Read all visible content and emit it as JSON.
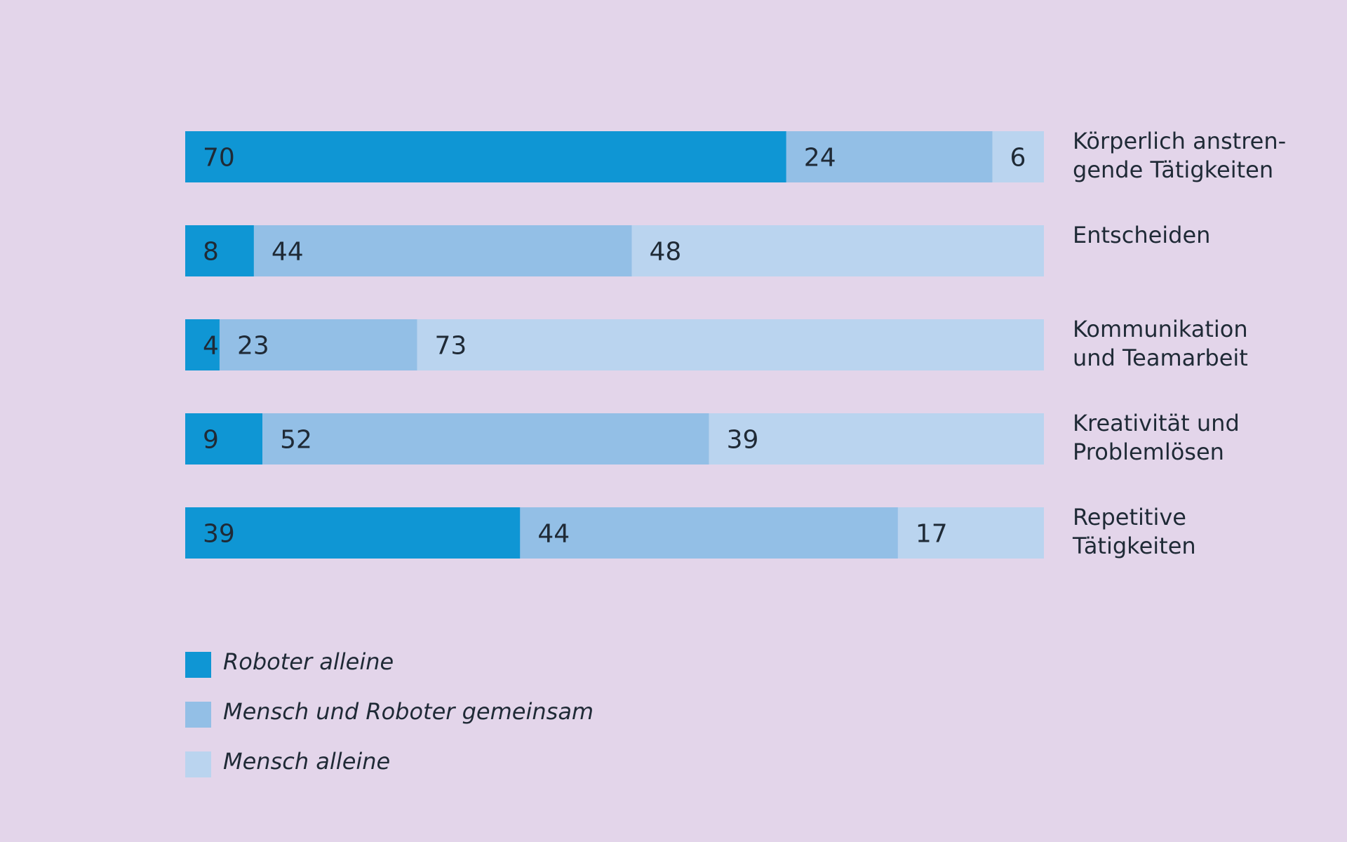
{
  "background": "#e3d5ea",
  "chart_data": {
    "type": "bar",
    "orientation": "horizontal",
    "stacked": true,
    "unit": "percent",
    "xlim": [
      0,
      100
    ],
    "grid": false,
    "legend_position": "bottom-left",
    "categories": [
      [
        "Körperlich anstren-",
        "gende Tätigkeiten"
      ],
      [
        "Entscheiden"
      ],
      [
        "Kommunikation",
        "und Teamarbeit"
      ],
      [
        "Kreativität und",
        "Problemlösen"
      ],
      [
        "Repetitive",
        "Tätigkeiten"
      ]
    ],
    "series": [
      {
        "name": "Roboter alleine",
        "color": "#0f96d4",
        "values": [
          70,
          8,
          4,
          9,
          39
        ]
      },
      {
        "name": "Mensch und Roboter gemeinsam",
        "color": "#93bfe6",
        "values": [
          24,
          44,
          23,
          52,
          44
        ]
      },
      {
        "name": "Mensch alleine",
        "color": "#bad4ef",
        "values": [
          6,
          48,
          73,
          39,
          17
        ]
      }
    ]
  }
}
